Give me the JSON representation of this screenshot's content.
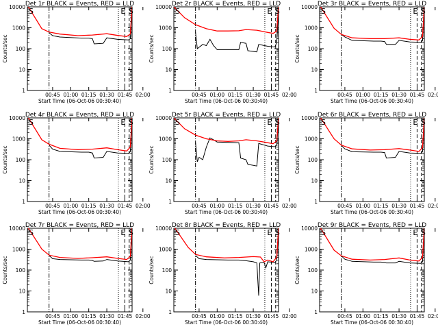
{
  "chart_data": {
    "type": "line",
    "grid_of_panels": "3x3",
    "shared": {
      "xlabel": "Start Time (06-Oct-06 00:30:40)",
      "ylabel": "Counts/sec",
      "y_scale": "log",
      "ylim": [
        1,
        10000
      ],
      "y_ticks": [
        1,
        10,
        100,
        1000,
        10000
      ],
      "y_tick_labels": [
        "1",
        "10",
        "100",
        "1000",
        "10000"
      ],
      "xlim_minutes_after_0030": [
        8,
        37
      ],
      "x_ticks_minutes": [
        15,
        20,
        25,
        30,
        35,
        40
      ],
      "x_tick_labels": [
        "00:45",
        "01:00",
        "01:15",
        "01:30",
        "01:45",
        "02:00"
      ],
      "event_color": "#000000",
      "lld_color": "#ff0000",
      "flag_letters": [
        "E",
        "S"
      ]
    },
    "panels": [
      {
        "title": "Det 1r BLACK = Events, RED = LLD",
        "flag_left": "S",
        "lld": [
          [
            8,
            12000
          ],
          [
            12,
            900
          ],
          [
            14,
            620
          ],
          [
            17,
            500
          ],
          [
            22,
            420
          ],
          [
            26,
            450
          ],
          [
            30,
            520
          ],
          [
            33,
            430
          ],
          [
            35.5,
            380
          ],
          [
            36.5,
            500
          ],
          [
            37,
            11000
          ]
        ],
        "events": [
          [
            14,
            580
          ],
          [
            15,
            420
          ],
          [
            17,
            360
          ],
          [
            23,
            320
          ],
          [
            25,
            320
          ],
          [
            26,
            300
          ],
          [
            26.5,
            170
          ],
          [
            29,
            180
          ],
          [
            30,
            330
          ],
          [
            33,
            280
          ],
          [
            36,
            260
          ],
          [
            36.5,
            300
          ],
          [
            37,
            8000
          ]
        ]
      },
      {
        "title": "Det 2r BLACK = Events, RED = LLD",
        "flag_left": "S",
        "lld": [
          [
            8,
            10000
          ],
          [
            11,
            3000
          ],
          [
            14,
            1400
          ],
          [
            17,
            900
          ],
          [
            20,
            700
          ],
          [
            23,
            700
          ],
          [
            26,
            720
          ],
          [
            28,
            820
          ],
          [
            31,
            760
          ],
          [
            34,
            600
          ],
          [
            35.5,
            540
          ],
          [
            36.5,
            700
          ],
          [
            37,
            11000
          ]
        ],
        "events": [
          [
            14,
            600
          ],
          [
            14.5,
            100
          ],
          [
            16,
            160
          ],
          [
            17,
            140
          ],
          [
            18,
            280
          ],
          [
            19,
            140
          ],
          [
            20,
            90
          ],
          [
            26,
            90
          ],
          [
            26.5,
            200
          ],
          [
            28,
            180
          ],
          [
            28.5,
            80
          ],
          [
            31,
            70
          ],
          [
            31.5,
            160
          ],
          [
            34,
            130
          ],
          [
            36,
            120
          ],
          [
            36.5,
            200
          ],
          [
            37,
            8000
          ]
        ]
      },
      {
        "title": "Det 3r BLACK = Events, RED = LLD",
        "flag_left": "S",
        "lld": [
          [
            8,
            12000
          ],
          [
            12,
            950
          ],
          [
            14,
            480
          ],
          [
            17,
            330
          ],
          [
            22,
            300
          ],
          [
            26,
            300
          ],
          [
            30,
            330
          ],
          [
            33,
            280
          ],
          [
            35.5,
            260
          ],
          [
            36.5,
            380
          ],
          [
            37,
            11000
          ]
        ],
        "events": [
          [
            14,
            480
          ],
          [
            15,
            360
          ],
          [
            17,
            250
          ],
          [
            23,
            230
          ],
          [
            25,
            230
          ],
          [
            26,
            220
          ],
          [
            26.5,
            160
          ],
          [
            29,
            160
          ],
          [
            30,
            250
          ],
          [
            33,
            210
          ],
          [
            36,
            200
          ],
          [
            36.5,
            240
          ],
          [
            37,
            8000
          ]
        ]
      },
      {
        "title": "Det 4r BLACK = Events, RED = LLD",
        "flag_left": "S",
        "lld": [
          [
            8,
            12000
          ],
          [
            12,
            900
          ],
          [
            14,
            550
          ],
          [
            17,
            350
          ],
          [
            22,
            300
          ],
          [
            26,
            320
          ],
          [
            30,
            370
          ],
          [
            33,
            300
          ],
          [
            35.5,
            260
          ],
          [
            36.5,
            400
          ],
          [
            37,
            11000
          ]
        ],
        "events": [
          [
            14,
            500
          ],
          [
            15,
            320
          ],
          [
            17,
            250
          ],
          [
            23,
            230
          ],
          [
            25,
            230
          ],
          [
            26,
            210
          ],
          [
            26.5,
            120
          ],
          [
            29,
            130
          ],
          [
            30,
            250
          ],
          [
            33,
            210
          ],
          [
            36,
            200
          ],
          [
            36.5,
            240
          ],
          [
            37,
            8000
          ]
        ]
      },
      {
        "title": "Det 5r BLACK = Events, RED = LLD",
        "flag_left": "S",
        "lld": [
          [
            8,
            10000
          ],
          [
            11,
            3000
          ],
          [
            14,
            1500
          ],
          [
            17,
            1000
          ],
          [
            20,
            800
          ],
          [
            23,
            750
          ],
          [
            26,
            800
          ],
          [
            28,
            900
          ],
          [
            31,
            800
          ],
          [
            34,
            650
          ],
          [
            35.5,
            580
          ],
          [
            36.5,
            800
          ],
          [
            37,
            11000
          ]
        ],
        "events": [
          [
            14,
            650
          ],
          [
            14.5,
            80
          ],
          [
            15,
            130
          ],
          [
            16,
            100
          ],
          [
            17,
            400
          ],
          [
            18,
            1100
          ],
          [
            19,
            900
          ],
          [
            20,
            700
          ],
          [
            26,
            650
          ],
          [
            26.5,
            120
          ],
          [
            28,
            100
          ],
          [
            28.5,
            60
          ],
          [
            31,
            50
          ],
          [
            31.5,
            600
          ],
          [
            34,
            450
          ],
          [
            36,
            420
          ],
          [
            36.5,
            500
          ],
          [
            37,
            8000
          ]
        ]
      },
      {
        "title": "Det 6r BLACK = Events, RED = LLD",
        "flag_left": "S",
        "lld": [
          [
            8,
            12000
          ],
          [
            12,
            1000
          ],
          [
            14,
            500
          ],
          [
            17,
            330
          ],
          [
            22,
            290
          ],
          [
            26,
            300
          ],
          [
            30,
            340
          ],
          [
            33,
            290
          ],
          [
            35.5,
            250
          ],
          [
            36.5,
            380
          ],
          [
            37,
            11000
          ]
        ],
        "events": [
          [
            14,
            480
          ],
          [
            15,
            330
          ],
          [
            17,
            240
          ],
          [
            23,
            230
          ],
          [
            25,
            230
          ],
          [
            26,
            220
          ],
          [
            26.5,
            120
          ],
          [
            29,
            130
          ],
          [
            30,
            250
          ],
          [
            33,
            210
          ],
          [
            36,
            200
          ],
          [
            36.5,
            240
          ],
          [
            37,
            8000
          ]
        ]
      },
      {
        "title": "Det 7r BLACK = Events, RED = LLD",
        "flag_left": "S",
        "lld": [
          [
            8,
            12000
          ],
          [
            12,
            1000
          ],
          [
            14,
            520
          ],
          [
            17,
            400
          ],
          [
            22,
            360
          ],
          [
            26,
            390
          ],
          [
            30,
            430
          ],
          [
            33,
            360
          ],
          [
            35.5,
            320
          ],
          [
            36.5,
            450
          ],
          [
            37,
            11000
          ]
        ],
        "events": [
          [
            14,
            500
          ],
          [
            15,
            350
          ],
          [
            17,
            320
          ],
          [
            23,
            300
          ],
          [
            25,
            300
          ],
          [
            26,
            290
          ],
          [
            26.5,
            260
          ],
          [
            29,
            270
          ],
          [
            30,
            320
          ],
          [
            33,
            270
          ],
          [
            36,
            250
          ],
          [
            36.5,
            300
          ],
          [
            37,
            8000
          ]
        ]
      },
      {
        "title": "Det 8r BLACK = Events, RED = LLD",
        "flag_left": "S",
        "lld": [
          [
            8,
            12000
          ],
          [
            12,
            1200
          ],
          [
            14,
            560
          ],
          [
            17,
            430
          ],
          [
            22,
            380
          ],
          [
            26,
            400
          ],
          [
            30,
            440
          ],
          [
            32,
            420
          ],
          [
            33,
            250
          ],
          [
            34,
            300
          ],
          [
            35.5,
            250
          ],
          [
            36.5,
            420
          ],
          [
            37,
            11000
          ]
        ],
        "events": [
          [
            14,
            500
          ],
          [
            15,
            350
          ],
          [
            17,
            320
          ],
          [
            23,
            300
          ],
          [
            25,
            300
          ],
          [
            26,
            300
          ],
          [
            28,
            280
          ],
          [
            30,
            250
          ],
          [
            31,
            220
          ],
          [
            31.5,
            6
          ],
          [
            31.8,
            220
          ],
          [
            33,
            230
          ],
          [
            33.5,
            130
          ],
          [
            34,
            250
          ],
          [
            36,
            230
          ],
          [
            36.5,
            300
          ],
          [
            37,
            8000
          ]
        ]
      },
      {
        "title": "Det 9r BLACK = Events, RED = LLD",
        "flag_left": "S",
        "lld": [
          [
            8,
            12000
          ],
          [
            12,
            900
          ],
          [
            14,
            480
          ],
          [
            17,
            330
          ],
          [
            22,
            300
          ],
          [
            26,
            320
          ],
          [
            30,
            380
          ],
          [
            33,
            300
          ],
          [
            35.5,
            270
          ],
          [
            36.5,
            400
          ],
          [
            37,
            11000
          ]
        ],
        "events": [
          [
            14,
            480
          ],
          [
            15,
            330
          ],
          [
            17,
            260
          ],
          [
            23,
            240
          ],
          [
            25,
            240
          ],
          [
            26,
            230
          ],
          [
            26.5,
            220
          ],
          [
            29,
            220
          ],
          [
            30,
            260
          ],
          [
            33,
            220
          ],
          [
            36,
            210
          ],
          [
            36.5,
            250
          ],
          [
            37,
            8000
          ]
        ]
      }
    ]
  }
}
